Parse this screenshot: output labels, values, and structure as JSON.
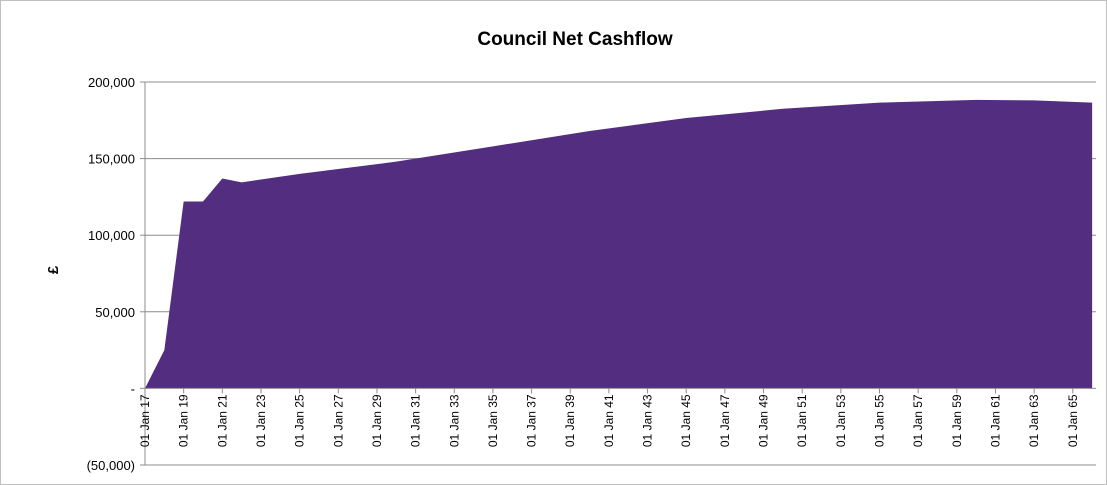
{
  "chart_data": {
    "type": "area",
    "title": "Council Net Cashflow",
    "xlabel": "",
    "ylabel": "£",
    "ylim": [
      -50000,
      200000
    ],
    "yticks": [
      -50000,
      0,
      50000,
      100000,
      150000,
      200000
    ],
    "ytick_labels": [
      "(50,000)",
      "-",
      "50,000",
      "100,000",
      "150,000",
      "200,000"
    ],
    "x_tick_labels": [
      "01 Jan 17",
      "01 Jan 19",
      "01 Jan 21",
      "01 Jan 23",
      "01 Jan 25",
      "01 Jan 27",
      "01 Jan 29",
      "01 Jan 31",
      "01 Jan 33",
      "01 Jan 35",
      "01 Jan 37",
      "01 Jan 39",
      "01 Jan 41",
      "01 Jan 43",
      "01 Jan 45",
      "01 Jan 47",
      "01 Jan 49",
      "01 Jan 51",
      "01 Jan 53",
      "01 Jan 55",
      "01 Jan 57",
      "01 Jan 59",
      "01 Jan 61",
      "01 Jan 63",
      "01 Jan 65"
    ],
    "x": [
      2017,
      2018,
      2019,
      2020,
      2021,
      2022,
      2025,
      2030,
      2035,
      2040,
      2045,
      2050,
      2055,
      2060,
      2063,
      2066
    ],
    "values": [
      0,
      25000,
      122000,
      122000,
      137000,
      134500,
      140000,
      148000,
      158000,
      168000,
      176500,
      182500,
      186500,
      188300,
      188000,
      186500
    ],
    "xlim": [
      2017,
      2066.2
    ],
    "grid": "horizontal",
    "legend": "none",
    "fill_color": "#522d80"
  }
}
